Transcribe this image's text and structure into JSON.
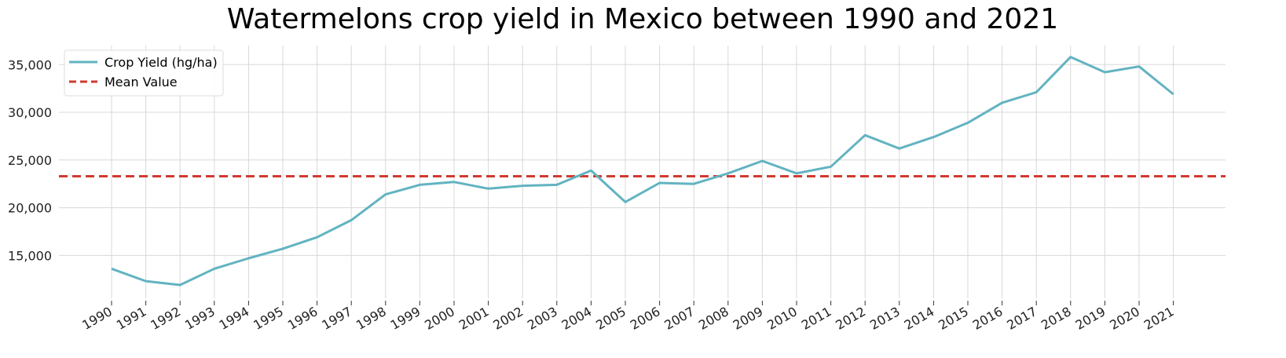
{
  "chart_data": {
    "type": "line",
    "title": "Watermelons crop yield in Mexico between 1990 and 2021",
    "xlabel": "",
    "ylabel": "",
    "x": [
      "1990",
      "1991",
      "1992",
      "1993",
      "1994",
      "1995",
      "1996",
      "1997",
      "1998",
      "1999",
      "2000",
      "2001",
      "2002",
      "2003",
      "2004",
      "2005",
      "2006",
      "2007",
      "2008",
      "2009",
      "2010",
      "2011",
      "2012",
      "2013",
      "2014",
      "2015",
      "2016",
      "2017",
      "2018",
      "2019",
      "2020",
      "2021"
    ],
    "series": [
      {
        "name": "Crop Yield (hg/ha)",
        "values": [
          13600,
          12300,
          11900,
          13600,
          14700,
          15700,
          16900,
          18700,
          21400,
          22400,
          22700,
          22000,
          22300,
          22400,
          23900,
          20600,
          22600,
          22500,
          23600,
          24900,
          23600,
          24300,
          27600,
          26200,
          27400,
          28900,
          31000,
          32100,
          35800,
          34200,
          34800,
          31900
        ]
      }
    ],
    "reference_lines": [
      {
        "name": "Mean Value",
        "value": 23300
      }
    ],
    "yticks": [
      15000,
      20000,
      25000,
      30000,
      35000
    ],
    "ytick_labels": [
      "15,000",
      "20,000",
      "25,000",
      "30,000",
      "35,000"
    ],
    "ylim": [
      10500,
      37000
    ],
    "grid": true,
    "legend_position": "top-left",
    "colors": {
      "series": "#62b3c1",
      "mean": "#d03a2e",
      "grid": "#d8d8d8"
    }
  }
}
